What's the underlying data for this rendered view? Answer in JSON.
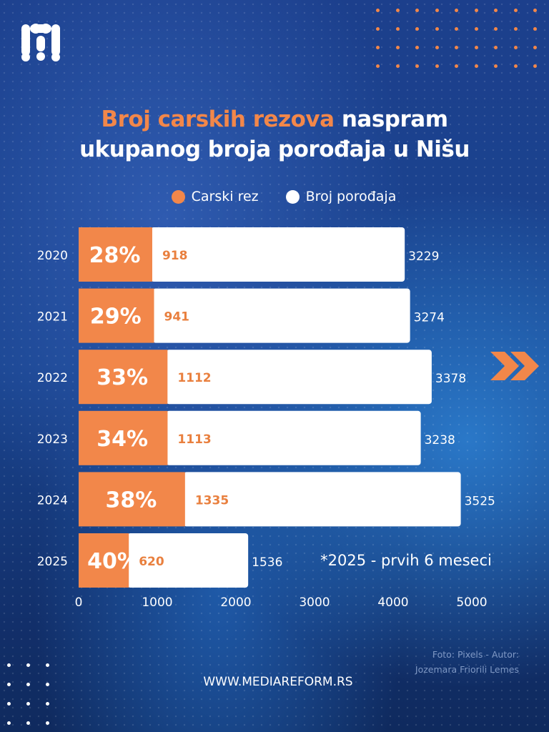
{
  "brand": {
    "logo_text": "M",
    "website": "WWW.MEDIAREFORM.RS",
    "credit_line1": "Foto: Pixels - Autor:",
    "credit_line2": "Jozemara Friorili Lemes"
  },
  "colors": {
    "orange": "#f2874a",
    "white": "#ffffff",
    "label_orange": "#e9803f"
  },
  "chart_data": {
    "type": "bar",
    "orientation": "horizontal-stacked",
    "title_highlight": "Broj carskih rezova",
    "title_rest1": "naspram",
    "title_line2": "ukupanog broja porođaja u Nišu",
    "legend": [
      "Carski rez",
      "Broj porođaja"
    ],
    "legend_placement": "top",
    "categories": [
      "2020",
      "2021",
      "2022",
      "2023",
      "2024",
      "2025"
    ],
    "series": [
      {
        "name": "Carski rez",
        "values": [
          918,
          941,
          1112,
          1113,
          1335,
          620
        ]
      },
      {
        "name": "Broj porođaja",
        "values": [
          3229,
          3274,
          3378,
          3238,
          3525,
          1536
        ]
      }
    ],
    "percent_labels": [
      "28%",
      "29%",
      "33%",
      "34%",
      "38%",
      "40%"
    ],
    "x_ticks": [
      "0",
      "1000",
      "2000",
      "3000",
      "4000",
      "5000"
    ],
    "xlim": [
      0,
      5000
    ],
    "annotation": "*2025 - prvih 6 meseci"
  }
}
